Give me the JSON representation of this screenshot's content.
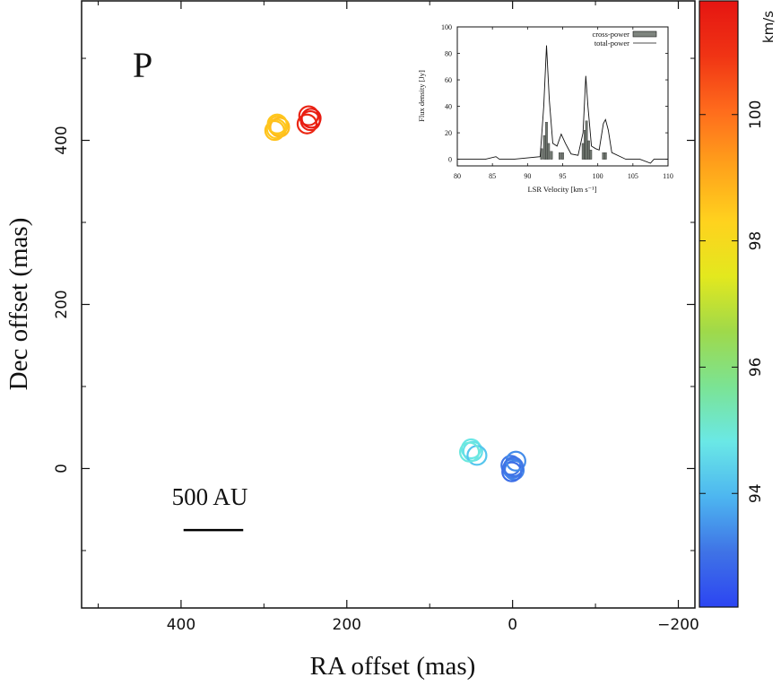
{
  "chart_data": {
    "type": "scatter",
    "panel_label": "P",
    "xlabel": "RA offset (mas)",
    "ylabel": "Dec offset (mas)",
    "xlim": [
      520,
      -220
    ],
    "ylim": [
      -170,
      570
    ],
    "xticks": [
      400,
      200,
      0,
      -200
    ],
    "xtick_labels": [
      "400",
      "200",
      "0",
      "−200"
    ],
    "yticks": [
      0,
      200,
      400
    ],
    "ytick_labels": [
      "0",
      "200",
      "400"
    ],
    "scale_bar": {
      "label": "500 AU",
      "x_from": 397,
      "x_to": 325,
      "y": -75
    },
    "spots": [
      {
        "x": 283,
        "y": 418,
        "vlsr": 98.6
      },
      {
        "x": 285,
        "y": 414,
        "vlsr": 98.5
      },
      {
        "x": 281,
        "y": 416,
        "vlsr": 98.7
      },
      {
        "x": 287,
        "y": 412,
        "vlsr": 98.6
      },
      {
        "x": 284,
        "y": 420,
        "vlsr": 98.5
      },
      {
        "x": 246,
        "y": 430,
        "vlsr": 101.4
      },
      {
        "x": 244,
        "y": 424,
        "vlsr": 101.5
      },
      {
        "x": 248,
        "y": 420,
        "vlsr": 101.3
      },
      {
        "x": 243,
        "y": 427,
        "vlsr": 101.6
      },
      {
        "x": 50,
        "y": 24,
        "vlsr": 94.8
      },
      {
        "x": 48,
        "y": 21,
        "vlsr": 94.7
      },
      {
        "x": 43,
        "y": 16,
        "vlsr": 94.2
      },
      {
        "x": 52,
        "y": 20,
        "vlsr": 94.9
      },
      {
        "x": 0,
        "y": 0,
        "vlsr": 93.2
      },
      {
        "x": 2,
        "y": 4,
        "vlsr": 93.1
      },
      {
        "x": -2,
        "y": -2,
        "vlsr": 93.3
      },
      {
        "x": 1,
        "y": -4,
        "vlsr": 93.0
      },
      {
        "x": -4,
        "y": 9,
        "vlsr": 93.4
      },
      {
        "x": -1,
        "y": 2,
        "vlsr": 93.1
      }
    ],
    "colorbar": {
      "unit": "km/s",
      "range": [
        92.2,
        101.8
      ],
      "ticks": [
        94,
        96,
        98,
        100
      ],
      "tick_labels": [
        "94",
        "96",
        "98",
        "100"
      ],
      "colormap": [
        "#2c45f2",
        "#3f73e6",
        "#4db6f0",
        "#6ae8e6",
        "#7be394",
        "#9fd94a",
        "#e3e81e",
        "#ffd21e",
        "#ffa21b",
        "#ff6c1c",
        "#f03414",
        "#e51512"
      ]
    },
    "inset": {
      "type": "line",
      "xlabel": "LSR Velocity [km s⁻¹]",
      "ylabel": "Flux density [Jy]",
      "xlim": [
        80,
        110
      ],
      "ylim": [
        -5,
        100
      ],
      "xticks": [
        80,
        85,
        90,
        95,
        100,
        105,
        110
      ],
      "xtick_labels": [
        "80",
        "85",
        "90",
        "95",
        "100",
        "105",
        "110"
      ],
      "yticks": [
        0,
        20,
        40,
        60,
        80,
        100
      ],
      "ytick_labels": [
        "0",
        "20",
        "40",
        "60",
        "80",
        "100"
      ],
      "legend": [
        "cross-power",
        "total-power"
      ],
      "total_power": {
        "x": [
          80,
          84,
          85.5,
          86,
          88,
          91.8,
          92.3,
          92.7,
          93.1,
          93.6,
          94.2,
          94.8,
          95.4,
          96.2,
          97.2,
          97.9,
          98.3,
          98.6,
          99.1,
          99.7,
          100.2,
          100.8,
          101.1,
          101.5,
          102,
          104,
          106,
          107.5,
          108,
          110
        ],
        "y": [
          0,
          0,
          2,
          0,
          0,
          2,
          40,
          86,
          45,
          12,
          10,
          19,
          12,
          4,
          3,
          20,
          63,
          40,
          10,
          8,
          7,
          27,
          30,
          22,
          5,
          0,
          0,
          -3,
          0,
          0
        ]
      },
      "cross_power": {
        "x": [
          92.0,
          92.4,
          92.7,
          93.0,
          93.4,
          94.6,
          95.0,
          97.9,
          98.2,
          98.4,
          98.7,
          99.0,
          100.8,
          101.1
        ],
        "y": [
          8,
          18,
          28,
          12,
          6,
          5,
          5,
          12,
          22,
          29,
          14,
          7,
          5,
          5
        ]
      }
    }
  }
}
